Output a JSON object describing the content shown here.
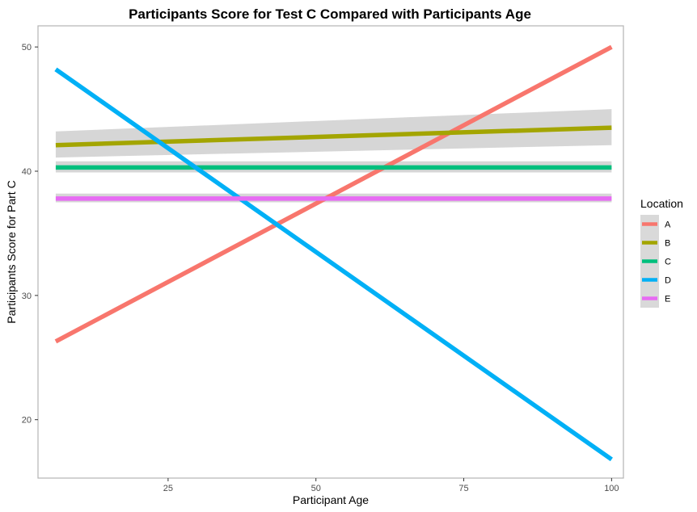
{
  "chart_data": {
    "type": "line",
    "title": "Participants Score for Test C Compared with Participants Age",
    "xlabel": "Participant Age",
    "ylabel": "Participants Score for Part C",
    "xlim": [
      3,
      102
    ],
    "ylim": [
      15.3,
      51.7
    ],
    "x_ticks": [
      25,
      50,
      75,
      100
    ],
    "y_ticks": [
      20,
      30,
      40,
      50
    ],
    "grid": false,
    "legend": {
      "title": "Location",
      "position": "right"
    },
    "series": [
      {
        "name": "A",
        "color": "#f8766d",
        "x": [
          6,
          100
        ],
        "y": [
          26.3,
          50.0
        ],
        "ci_lower": [
          26.3,
          50.0
        ],
        "ci_upper": [
          26.3,
          50.0
        ]
      },
      {
        "name": "B",
        "color": "#a3a500",
        "x": [
          6,
          100
        ],
        "y": [
          42.1,
          43.5
        ],
        "ci_lower": [
          41.1,
          42.1
        ],
        "ci_upper": [
          43.2,
          45.0
        ]
      },
      {
        "name": "C",
        "color": "#00bf7d",
        "x": [
          6,
          100
        ],
        "y": [
          40.3,
          40.3
        ],
        "ci_lower": [
          39.9,
          39.9
        ],
        "ci_upper": [
          40.8,
          40.8
        ]
      },
      {
        "name": "D",
        "color": "#00b0f6",
        "x": [
          6,
          100
        ],
        "y": [
          48.2,
          16.8
        ],
        "ci_lower": [
          48.2,
          16.8
        ],
        "ci_upper": [
          48.2,
          16.8
        ]
      },
      {
        "name": "E",
        "color": "#e76bf3",
        "x": [
          6,
          100
        ],
        "y": [
          37.8,
          37.8
        ],
        "ci_lower": [
          37.5,
          37.5
        ],
        "ci_upper": [
          38.2,
          38.2
        ]
      }
    ]
  }
}
